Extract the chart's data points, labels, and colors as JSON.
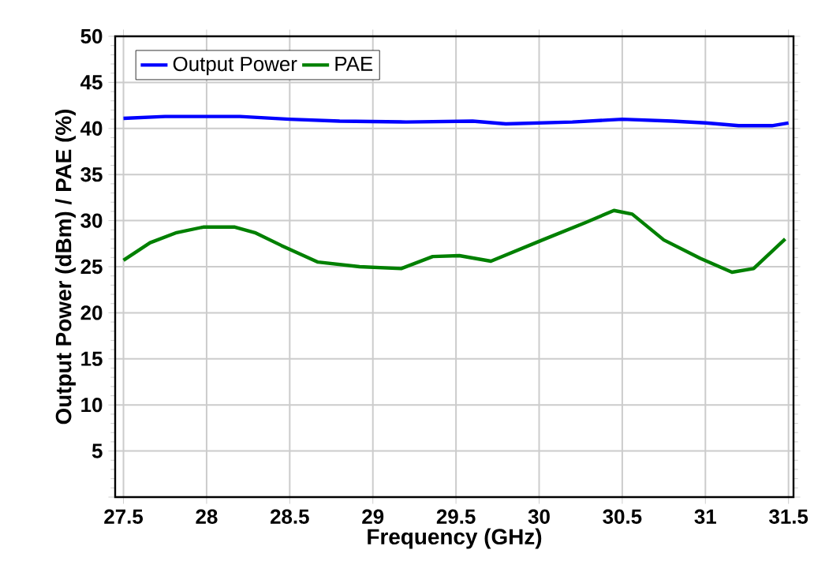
{
  "chart_data": {
    "type": "line",
    "xlabel": "Frequency (GHz)",
    "ylabel": "Output Power (dBm) / PAE (%)",
    "xlim": [
      27.45,
      31.53
    ],
    "xticks": [
      27.5,
      28,
      28.5,
      29,
      29.5,
      30,
      30.5,
      31,
      31.5
    ],
    "ylim": [
      0,
      50
    ],
    "yticks": [
      {
        "value": 0,
        "label": null
      },
      5,
      10,
      15,
      20,
      25,
      30,
      35,
      40,
      45,
      50
    ],
    "grid": true,
    "legend": "top left",
    "line_style": "solid",
    "marker": "none",
    "series": [
      {
        "name": "Output Power",
        "color": "#0000ff",
        "x": [
          27.5,
          27.75,
          28.2,
          28.5,
          28.8,
          29.2,
          29.6,
          29.8,
          30.2,
          30.5,
          30.8,
          31.0,
          31.2,
          31.4,
          31.5
        ],
        "values": [
          41.1,
          41.3,
          41.3,
          41.0,
          40.8,
          40.7,
          40.8,
          40.5,
          40.7,
          41.0,
          40.8,
          40.6,
          40.3,
          40.3,
          40.6
        ]
      },
      {
        "name": "PAE",
        "color": "#008000",
        "x": [
          27.5,
          27.66,
          27.82,
          27.98,
          28.17,
          28.29,
          28.45,
          28.67,
          28.92,
          29.17,
          29.36,
          29.52,
          29.71,
          30.02,
          30.28,
          30.45,
          30.56,
          30.75,
          30.97,
          31.16,
          31.29,
          31.48
        ],
        "values": [
          25.7,
          27.6,
          28.7,
          29.3,
          29.3,
          28.7,
          27.3,
          25.5,
          25.0,
          24.8,
          26.1,
          26.2,
          25.6,
          27.9,
          29.8,
          31.1,
          30.7,
          27.9,
          25.9,
          24.4,
          24.8,
          28.0
        ]
      }
    ]
  }
}
